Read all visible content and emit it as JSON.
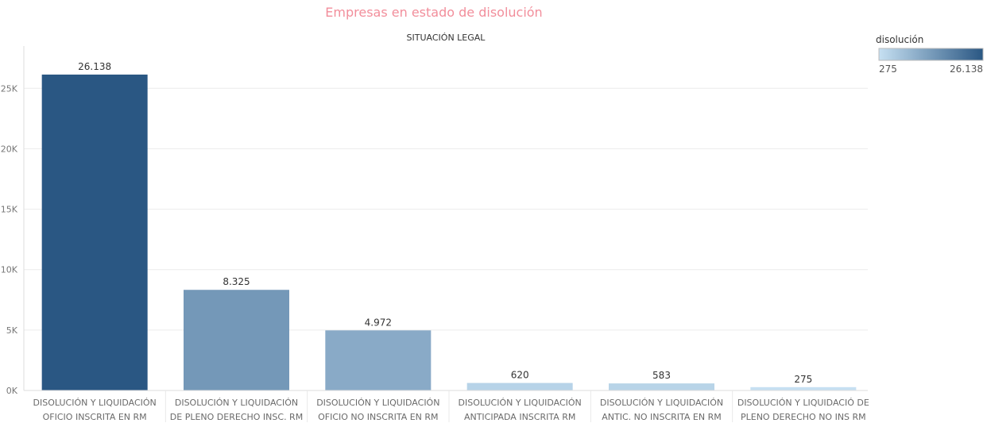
{
  "chart_data": {
    "type": "bar",
    "title": "Empresas en estado de disolución",
    "xlabel": "SITUACIÓN LEGAL",
    "ylabel": "",
    "ylim": [
      0,
      28500
    ],
    "yticks": [
      {
        "value": 0,
        "label": "0K"
      },
      {
        "value": 5000,
        "label": "5K"
      },
      {
        "value": 10000,
        "label": "10K"
      },
      {
        "value": 15000,
        "label": "15K"
      },
      {
        "value": 20000,
        "label": "20K"
      },
      {
        "value": 25000,
        "label": "25K"
      }
    ],
    "categories": [
      [
        "DISOLUCIÓN Y LIQUIDACIÓN",
        "OFICIO INSCRITA EN RM"
      ],
      [
        "DISOLUCIÓN Y LIQUIDACIÓN",
        "DE PLENO DERECHO INSC. RM"
      ],
      [
        "DISOLUCIÓN Y LIQUIDACIÓN",
        "OFICIO NO INSCRITA EN RM"
      ],
      [
        "DISOLUCIÓN Y LIQUIDACIÓN",
        "ANTICIPADA INSCRITA RM"
      ],
      [
        "DISOLUCIÓN Y LIQUIDACIÓN",
        "ANTIC. NO INSCRITA EN RM"
      ],
      [
        "DISOLUCIÓN Y LIQUIDACIÓ DE",
        "PLENO DERECHO NO INS RM"
      ]
    ],
    "values": [
      26138,
      8325,
      4972,
      620,
      583,
      275
    ],
    "value_labels": [
      "26.138",
      "8.325",
      "4.972",
      "620",
      "583",
      "275"
    ],
    "grid": true,
    "legend": {
      "title": "disolución",
      "placement": "top-right",
      "min_label": "275",
      "max_label": "26.138",
      "min_value": 275,
      "max_value": 26138,
      "color_low": "#c6e0f2",
      "color_high": "#2a5783"
    }
  }
}
